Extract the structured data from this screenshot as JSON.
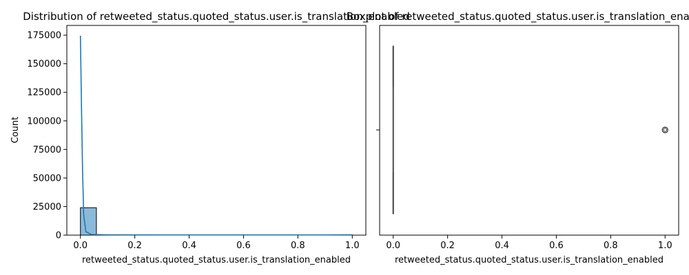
{
  "chart_data": [
    {
      "type": "histogram",
      "title": "Distribution of retweeted_status.quoted_status.user.is_translation_enabled",
      "xlabel": "retweeted_status.quoted_status.user.is_translation_enabled",
      "ylabel": "Count",
      "xlim": [
        -0.05,
        1.05
      ],
      "ylim": [
        0,
        183500
      ],
      "xticks": [
        0.0,
        0.2,
        0.4,
        0.6,
        0.8,
        1.0
      ],
      "xtick_labels": [
        "0.0",
        "0.2",
        "0.4",
        "0.6",
        "0.8",
        "1.0"
      ],
      "yticks": [
        0,
        25000,
        50000,
        75000,
        100000,
        125000,
        150000,
        175000
      ],
      "ytick_labels": [
        "0",
        "25000",
        "50000",
        "75000",
        "100000",
        "125000",
        "150000",
        "175000"
      ],
      "bins": [
        {
          "x0": 0.0,
          "x1": 0.0588,
          "count": 24000
        },
        {
          "x0": 0.9412,
          "x1": 1.0,
          "count": 150
        }
      ],
      "kde": {
        "x": [
          0.0,
          0.004,
          0.008,
          0.012,
          0.02,
          0.04,
          0.1,
          0.3,
          0.5,
          0.7,
          0.9,
          0.96,
          0.99,
          1.0
        ],
        "y": [
          174500,
          110000,
          55000,
          18000,
          3000,
          600,
          300,
          200,
          200,
          200,
          200,
          250,
          300,
          300
        ]
      },
      "bar_color": "#8bbad9",
      "line_color": "#1f77b4",
      "grid": false
    },
    {
      "type": "boxplot",
      "title": "Boxplot of retweeted_status.quoted_status.user.is_translation_enabled",
      "xlabel": "retweeted_status.quoted_status.user.is_translation_enabled",
      "xlim": [
        -0.05,
        1.05
      ],
      "xticks": [
        0.0,
        0.2,
        0.4,
        0.6,
        0.8,
        1.0
      ],
      "xtick_labels": [
        "0.0",
        "0.2",
        "0.4",
        "0.6",
        "0.8",
        "1.0"
      ],
      "box": {
        "min": 0.0,
        "q1": 0.0,
        "median": 0.0,
        "q3": 0.0,
        "max": 0.0
      },
      "outliers": [
        1.0
      ],
      "box_color": "#1f77b4",
      "grid": false
    }
  ]
}
